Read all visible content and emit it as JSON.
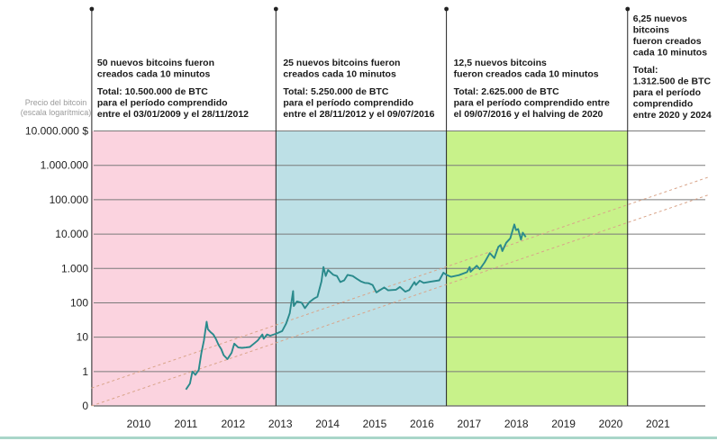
{
  "colors": {
    "era1": "#fbd3df",
    "era2": "#bde0e6",
    "era3": "#c8f28a",
    "price_line": "#2a8a8c",
    "trend_line": "#d9a489",
    "grid": "#7a7a7a",
    "bottom_rule": "#a9d6c9"
  },
  "chart_data": {
    "type": "line",
    "title": "",
    "xlabel": "",
    "ylabel": "Precio del bitcoin",
    "ylabel_sub": "(escala logarítmica)",
    "yscale": "log",
    "ylim": [
      0.1,
      10000000
    ],
    "xlim": [
      "2009-01-01",
      "2022-02-01"
    ],
    "grid": true,
    "y_ticks": [
      {
        "value": 10000000,
        "label": "10.000.000 $"
      },
      {
        "value": 1000000,
        "label": "1.000.000"
      },
      {
        "value": 100000,
        "label": "100.000"
      },
      {
        "value": 10000,
        "label": "10.000"
      },
      {
        "value": 1000,
        "label": "1.000"
      },
      {
        "value": 100,
        "label": "100"
      },
      {
        "value": 10,
        "label": "10"
      },
      {
        "value": 1,
        "label": "1"
      },
      {
        "value": 0.1,
        "label": "0"
      }
    ],
    "x_ticks": [
      {
        "value": "2010-01-01",
        "label": "2010"
      },
      {
        "value": "2011-01-01",
        "label": "2011"
      },
      {
        "value": "2012-01-01",
        "label": "2012"
      },
      {
        "value": "2013-01-01",
        "label": "2013"
      },
      {
        "value": "2014-01-01",
        "label": "2014"
      },
      {
        "value": "2015-01-01",
        "label": "2015"
      },
      {
        "value": "2016-01-01",
        "label": "2016"
      },
      {
        "value": "2017-01-01",
        "label": "2017"
      },
      {
        "value": "2018-01-01",
        "label": "2018"
      },
      {
        "value": "2019-01-01",
        "label": "2019"
      },
      {
        "value": "2020-01-01",
        "label": "2020"
      },
      {
        "value": "2021-01-01",
        "label": "2021"
      }
    ],
    "halvings": [
      "2009-01-03",
      "2012-11-28",
      "2016-07-09",
      "2020-05-11"
    ],
    "eras": [
      {
        "start": "2009-01-03",
        "end": "2012-11-28",
        "color": "era1"
      },
      {
        "start": "2012-11-28",
        "end": "2016-07-09",
        "color": "era2"
      },
      {
        "start": "2016-07-09",
        "end": "2020-05-11",
        "color": "era3"
      }
    ],
    "series": [
      {
        "data": [
          [
            "2011-01-01",
            0.3
          ],
          [
            "2011-02-01",
            0.45
          ],
          [
            "2011-02-20",
            1.0
          ],
          [
            "2011-03-15",
            0.8
          ],
          [
            "2011-04-10",
            1.1
          ],
          [
            "2011-05-01",
            3.5
          ],
          [
            "2011-05-20",
            8.0
          ],
          [
            "2011-06-10",
            28.0
          ],
          [
            "2011-06-20",
            17.0
          ],
          [
            "2011-07-10",
            14.0
          ],
          [
            "2011-08-01",
            12.0
          ],
          [
            "2011-08-20",
            9.0
          ],
          [
            "2011-09-10",
            6.0
          ],
          [
            "2011-10-01",
            4.5
          ],
          [
            "2011-10-20",
            3.0
          ],
          [
            "2011-11-18",
            2.3
          ],
          [
            "2011-12-20",
            3.5
          ],
          [
            "2012-01-10",
            6.5
          ],
          [
            "2012-02-10",
            5.0
          ],
          [
            "2012-03-10",
            4.9
          ],
          [
            "2012-04-10",
            5.0
          ],
          [
            "2012-05-10",
            5.2
          ],
          [
            "2012-06-10",
            6.5
          ],
          [
            "2012-07-10",
            8.0
          ],
          [
            "2012-08-15",
            12.0
          ],
          [
            "2012-08-25",
            9.0
          ],
          [
            "2012-09-20",
            12.0
          ],
          [
            "2012-10-15",
            11.0
          ],
          [
            "2012-11-28",
            12.5
          ],
          [
            "2013-01-15",
            15.0
          ],
          [
            "2013-02-15",
            25.0
          ],
          [
            "2013-03-15",
            50.0
          ],
          [
            "2013-04-10",
            220.0
          ],
          [
            "2013-04-15",
            80.0
          ],
          [
            "2013-05-10",
            110.0
          ],
          [
            "2013-06-15",
            100.0
          ],
          [
            "2013-07-10",
            70.0
          ],
          [
            "2013-08-15",
            105.0
          ],
          [
            "2013-09-15",
            130.0
          ],
          [
            "2013-10-15",
            150.0
          ],
          [
            "2013-11-15",
            420.0
          ],
          [
            "2013-12-01",
            1100.0
          ],
          [
            "2013-12-18",
            600.0
          ],
          [
            "2014-01-05",
            900.0
          ],
          [
            "2014-02-15",
            650.0
          ],
          [
            "2014-03-15",
            600.0
          ],
          [
            "2014-04-10",
            400.0
          ],
          [
            "2014-05-10",
            450.0
          ],
          [
            "2014-06-05",
            650.0
          ],
          [
            "2014-07-15",
            600.0
          ],
          [
            "2014-08-15",
            500.0
          ],
          [
            "2014-09-15",
            420.0
          ],
          [
            "2014-10-15",
            380.0
          ],
          [
            "2014-11-15",
            370.0
          ],
          [
            "2014-12-15",
            330.0
          ],
          [
            "2015-01-14",
            200.0
          ],
          [
            "2015-02-15",
            240.0
          ],
          [
            "2015-03-15",
            280.0
          ],
          [
            "2015-04-15",
            230.0
          ],
          [
            "2015-06-15",
            240.0
          ],
          [
            "2015-07-15",
            290.0
          ],
          [
            "2015-08-25",
            210.0
          ],
          [
            "2015-09-25",
            235.0
          ],
          [
            "2015-11-04",
            400.0
          ],
          [
            "2015-11-15",
            330.0
          ],
          [
            "2015-12-15",
            440.0
          ],
          [
            "2016-01-15",
            380.0
          ],
          [
            "2016-03-15",
            415.0
          ],
          [
            "2016-05-15",
            450.0
          ],
          [
            "2016-06-16",
            750.0
          ],
          [
            "2016-07-09",
            650.0
          ],
          [
            "2016-08-15",
            570.0
          ],
          [
            "2016-10-15",
            640.0
          ],
          [
            "2016-12-15",
            780.0
          ],
          [
            "2017-01-05",
            1100.0
          ],
          [
            "2017-01-12",
            800.0
          ],
          [
            "2017-03-01",
            1200.0
          ],
          [
            "2017-03-25",
            950.0
          ],
          [
            "2017-05-01",
            1500.0
          ],
          [
            "2017-06-10",
            2800.0
          ],
          [
            "2017-07-15",
            2000.0
          ],
          [
            "2017-08-15",
            4200.0
          ],
          [
            "2017-09-01",
            4800.0
          ],
          [
            "2017-09-15",
            3200.0
          ],
          [
            "2017-10-15",
            5600.0
          ],
          [
            "2017-11-15",
            7500.0
          ],
          [
            "2017-12-17",
            19000.0
          ],
          [
            "2017-12-30",
            13000.0
          ],
          [
            "2018-01-15",
            14000.0
          ],
          [
            "2018-02-06",
            6900.0
          ],
          [
            "2018-02-20",
            11000.0
          ],
          [
            "2018-03-15",
            8200.0
          ]
        ]
      }
    ],
    "trendlines": [
      {
        "start": [
          "2009-01-01",
          0.33
        ],
        "end": [
          "2022-02-01",
          460000
        ]
      },
      {
        "start": [
          "2009-01-01",
          0.1
        ],
        "end": [
          "2022-02-01",
          140000
        ]
      }
    ]
  },
  "annotations": [
    {
      "lines": [
        "50 nuevos bitcoins fueron",
        "creados cada 10 minutos",
        "",
        "Total: 10.500.000 de BTC",
        "para el período comprendido",
        "entre el 03/01/2009 y el 28/11/2012"
      ]
    },
    {
      "lines": [
        "25 nuevos bitcoins fueron",
        "creados cada 10 minutos",
        "",
        "Total: 5.250.000 de BTC",
        "para el período comprendido",
        "entre el 28/11/2012 y el 09/07/2016"
      ]
    },
    {
      "lines": [
        "12,5 nuevos bitcoins",
        "fueron creados cada 10 minutos",
        "",
        "Total: 2.625.000 de BTC",
        "para el período comprendido entre",
        "el 09/07/2016 y el halving de 2020"
      ]
    },
    {
      "lines": [
        "6,25 nuevos",
        "bitcoins",
        "fueron creados",
        "cada 10 minutos",
        "",
        "Total:",
        "1.312.500 de BTC",
        "para el período",
        "comprendido",
        "entre 2020 y 2024"
      ]
    }
  ]
}
